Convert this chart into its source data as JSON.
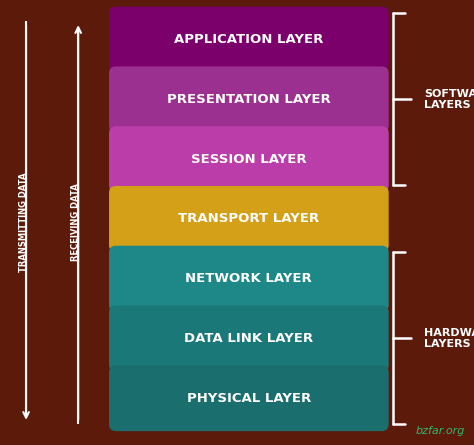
{
  "background_color": "#5C1A0A",
  "layers": [
    {
      "label": "APPLICATION LAYER",
      "color": "#7B006B"
    },
    {
      "label": "PRESENTATION LAYER",
      "color": "#9B3090"
    },
    {
      "label": "SESSION LAYER",
      "color": "#BB3DAA"
    },
    {
      "label": "TRANSPORT LAYER",
      "color": "#D4A017"
    },
    {
      "label": "NETWORK LAYER",
      "color": "#1E8888"
    },
    {
      "label": "DATA LINK LAYER",
      "color": "#1A7878"
    },
    {
      "label": "PHYSICAL LAYER",
      "color": "#1A6E6E"
    }
  ],
  "text_color": "#FFFFFF",
  "font_size": 9.5,
  "software_label": "SOFTWARE\nLAYERS",
  "hardware_label": "HARDWARE\nLAYERS",
  "bracket_label_color": "#FFFFFF",
  "transmitting_label": "TRANSMITTING DATA",
  "receiving_label": "RECEIVING DATA",
  "watermark": "bzfar.org",
  "watermark_color": "#30B870"
}
